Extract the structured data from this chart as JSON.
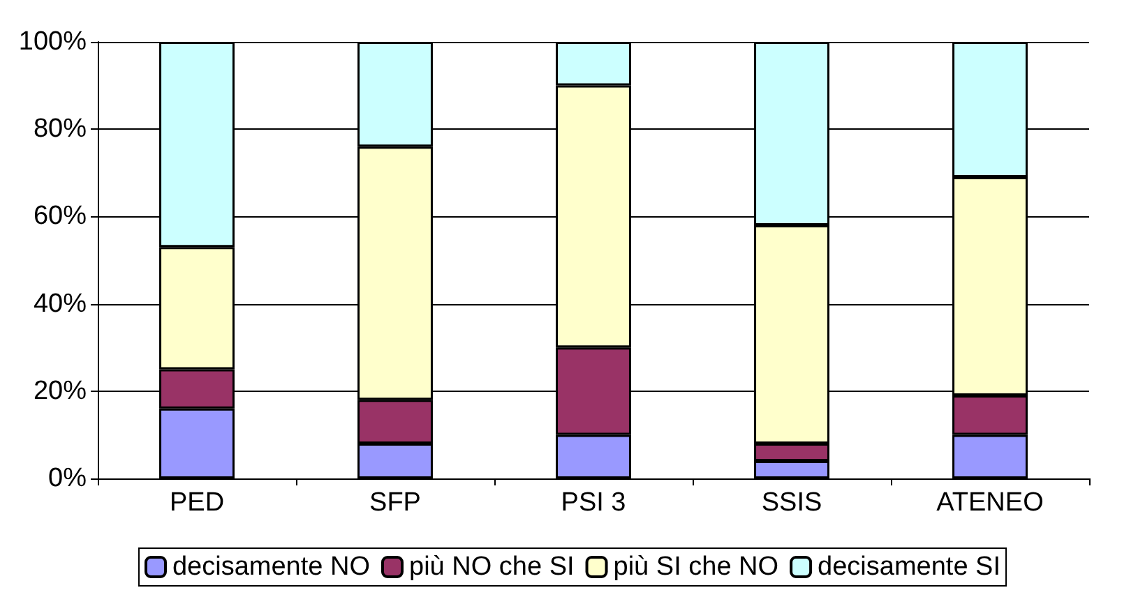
{
  "chart_data": {
    "type": "bar",
    "stacked": true,
    "categories": [
      "PED",
      "SFP",
      "PSI 3",
      "SSIS",
      "ATENEO"
    ],
    "series": [
      {
        "name": "decisamente NO",
        "color": "#9999ff",
        "values": [
          16,
          8,
          10,
          4,
          10
        ]
      },
      {
        "name": "più NO che SI",
        "color": "#993366",
        "values": [
          9,
          10,
          20,
          4,
          9
        ]
      },
      {
        "name": "più SI che NO",
        "color": "#ffffcc",
        "values": [
          28,
          58,
          60,
          50,
          50
        ]
      },
      {
        "name": "decisamente SI",
        "color": "#ccffff",
        "values": [
          47,
          24,
          10,
          42,
          31
        ]
      }
    ],
    "ylim": [
      0,
      100
    ],
    "yticks": [
      {
        "value": 0,
        "label": "0%"
      },
      {
        "value": 20,
        "label": "20%"
      },
      {
        "value": 40,
        "label": "40%"
      },
      {
        "value": 60,
        "label": "60%"
      },
      {
        "value": 80,
        "label": "80%"
      },
      {
        "value": 100,
        "label": "100%"
      }
    ],
    "grid": "y",
    "legend": "bottom"
  }
}
